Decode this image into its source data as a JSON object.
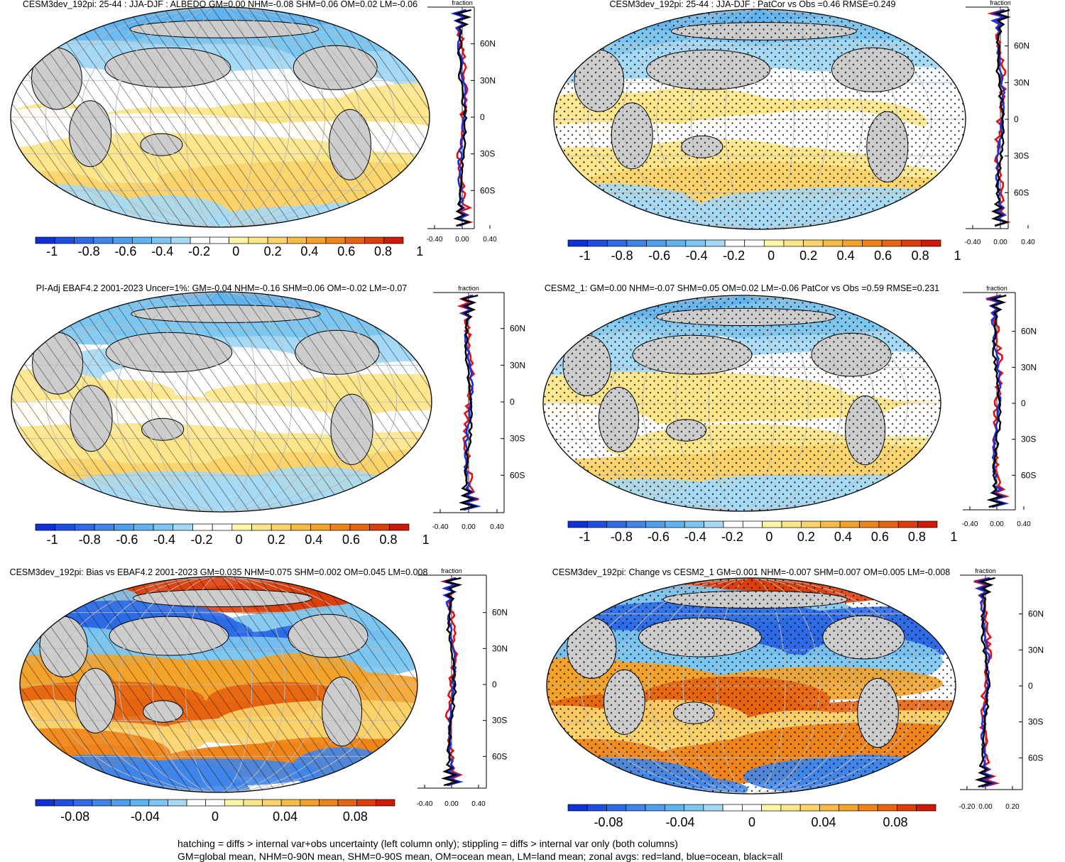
{
  "panels": [
    {
      "title": "CESM3dev_192pi: 25-44 : JJA-DJF : ALBEDO GM=0.00 NHM=-0.08 SHM=0.06 OM=0.02 LM=-0.06",
      "pattern": "hatch",
      "colorbar_ticks": [
        "-1",
        "-0.8",
        "-0.6",
        "-0.4",
        "-0.2",
        "0",
        "0.2",
        "0.4",
        "0.6",
        "0.8",
        "1"
      ],
      "zonal_axis_ticks": [
        "-0.40",
        "0.00",
        "0.40"
      ],
      "zonal_label": "fraction",
      "lat_ticks": [
        "60N",
        "30N",
        "0",
        "30S",
        "60S"
      ]
    },
    {
      "title": "CESM3dev_192pi: 25-44 : JJA-DJF : PatCor vs Obs =0.46 RMSE=0.249",
      "pattern": "stipple",
      "colorbar_ticks": [
        "-1",
        "-0.8",
        "-0.6",
        "-0.4",
        "-0.2",
        "0",
        "0.2",
        "0.4",
        "0.6",
        "0.8",
        "1"
      ],
      "zonal_axis_ticks": [
        "-0.40",
        "0.00",
        "0.40"
      ],
      "zonal_label": "fraction",
      "lat_ticks": [
        "60N",
        "30N",
        "0",
        "30S",
        "60S"
      ]
    },
    {
      "title": "PI-Adj EBAF4.2 2001-2023 Uncer=1%: GM=-0.04 NHM=-0.16 SHM=0.06 OM=-0.02 LM=-0.07",
      "pattern": "hatch",
      "colorbar_ticks": [
        "-1",
        "-0.8",
        "-0.6",
        "-0.4",
        "-0.2",
        "0",
        "0.2",
        "0.4",
        "0.6",
        "0.8",
        "1"
      ],
      "zonal_axis_ticks": [
        "-0.40",
        "0.00",
        "0.40"
      ],
      "zonal_label": "fraction",
      "lat_ticks": [
        "60N",
        "30N",
        "0",
        "30S",
        "60S"
      ]
    },
    {
      "title": "CESM2_1: GM=0.00 NHM=-0.07 SHM=0.05 OM=0.02 LM=-0.06 PatCor vs Obs =0.59 RMSE=0.231",
      "pattern": "stipple",
      "colorbar_ticks": [
        "-1",
        "-0.8",
        "-0.6",
        "-0.4",
        "-0.2",
        "0",
        "0.2",
        "0.4",
        "0.6",
        "0.8",
        "1"
      ],
      "zonal_axis_ticks": [
        "-0.40",
        "0.00",
        "0.40"
      ],
      "zonal_label": "fraction",
      "lat_ticks": [
        "60N",
        "30N",
        "0",
        "30S",
        "60S"
      ]
    },
    {
      "title": "CESM3dev_192pi: Bias vs EBAF4.2 2001-2023 GM=0.035 NHM=0.075 SHM=0.002 OM=0.045 LM=0.008",
      "pattern": "hatch",
      "colorbar_ticks": [
        "-0.08",
        "-0.04",
        "0",
        "0.04",
        "0.08"
      ],
      "zonal_axis_ticks": [
        "-0.40",
        "0.00",
        "0.40"
      ],
      "zonal_label": "fraction",
      "lat_ticks": [
        "60N",
        "30N",
        "0",
        "30S",
        "60S"
      ]
    },
    {
      "title": "CESM3dev_192pi: Change vs CESM2_1 GM=0.001 NHM=-0.007 SHM=0.007 OM=0.005 LM=-0.008",
      "pattern": "stipple",
      "colorbar_ticks": [
        "-0.08",
        "-0.04",
        "0",
        "0.04",
        "0.08"
      ],
      "zonal_axis_ticks": [
        "-0.20",
        "0.00",
        "0.20"
      ],
      "zonal_label": "fraction",
      "lat_ticks": [
        "60N",
        "30N",
        "0",
        "30S",
        "60S"
      ]
    }
  ],
  "colorscale": [
    "#1030d8",
    "#1e4fe0",
    "#2e6ae6",
    "#3f85ea",
    "#4f9fee",
    "#5fb4f0",
    "#7cc6f1",
    "#a6d9f5",
    "#ffffff",
    "#ffffff",
    "#fff6a8",
    "#fde68a",
    "#fbd36a",
    "#f7bb45",
    "#f3a22a",
    "#ee8419",
    "#e6640f",
    "#dd3f0b",
    "#d01a08"
  ],
  "zonal_colors": {
    "land": "#e01010",
    "ocean": "#1a2fd6",
    "all": "#000000"
  },
  "captions": [
    "hatching = diffs > internal var+obs uncertainty (left column only); stippling = diffs > internal var only (both columns)",
    "GM=global mean, NHM=0-90N mean, SHM=0-90S mean, OM=ocean mean, LM=land mean; zonal avgs: red=land, blue=ocean, black=all"
  ]
}
